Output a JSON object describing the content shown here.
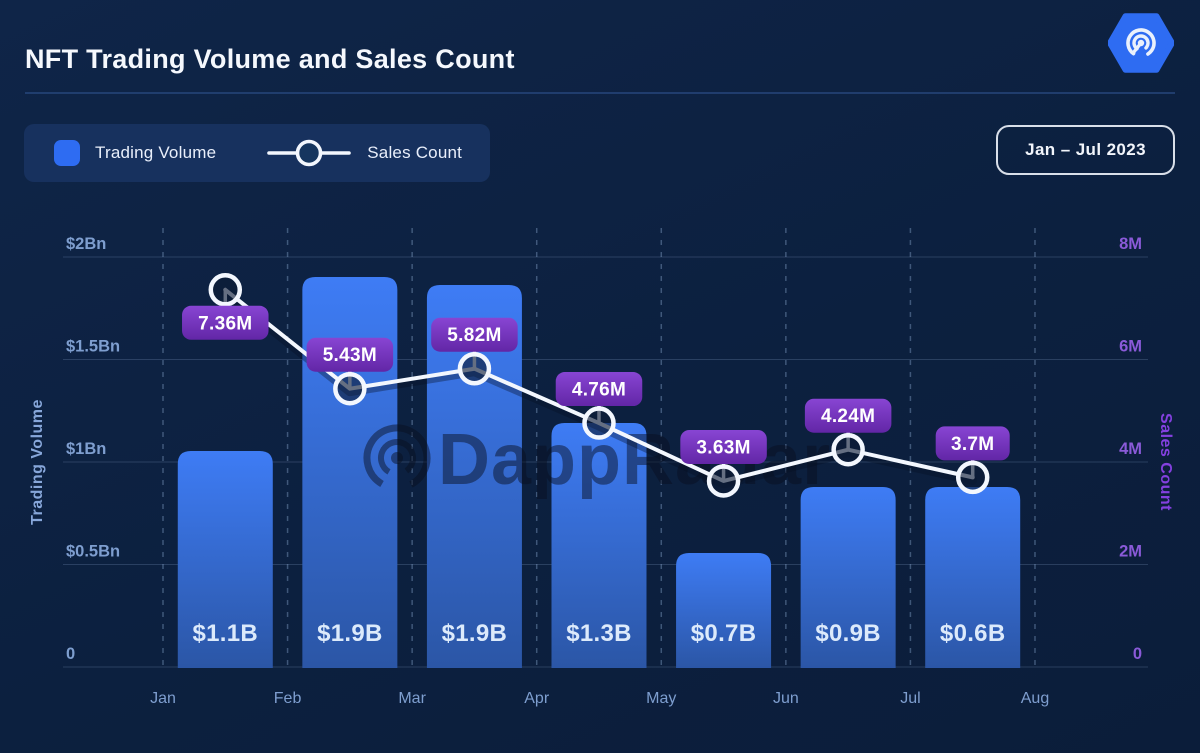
{
  "header": {
    "title": "NFT Trading Volume and Sales Count",
    "range_badge": "Jan – Jul 2023"
  },
  "legend": {
    "volume_label": "Trading Volume",
    "sales_label": "Sales Count"
  },
  "watermark": "DappRadar",
  "colors": {
    "background": "#0c203f",
    "panel": "#17315e",
    "accent_blue": "#2e6cf2",
    "bar_top": "#3e7cf5",
    "bar_bottom": "#2b56a6",
    "line": "#f3f7fe",
    "badge_purple_top": "#8845d3",
    "badge_purple_bottom": "#6226a6",
    "left_axis_text": "#7e9ecf",
    "right_axis_text": "#8a5ad8",
    "right_axis_title": "#8440e0"
  },
  "chart_data": {
    "type": "bar+line combo",
    "categories": [
      "Jan",
      "Feb",
      "Mar",
      "Apr",
      "May",
      "Jun",
      "Jul",
      "Aug"
    ],
    "bar_alignment": "between-ticks",
    "series": [
      {
        "name": "Trading Volume",
        "type": "bar",
        "unit": "USD billions",
        "values": [
          1.1,
          1.9,
          1.9,
          1.3,
          0.7,
          0.9,
          0.6
        ],
        "value_labels": [
          "$1.1B",
          "$1.9B",
          "$1.9B",
          "$1.3B",
          "$0.7B",
          "$0.9B",
          "$0.6B"
        ]
      },
      {
        "name": "Sales Count",
        "type": "line",
        "unit": "millions",
        "values": [
          7.36,
          5.43,
          5.82,
          4.76,
          3.63,
          4.24,
          3.7
        ],
        "value_labels": [
          "7.36M",
          "5.43M",
          "5.82M",
          "4.76M",
          "3.63M",
          "4.24M",
          "3.7M"
        ]
      }
    ],
    "left_axis": {
      "title": "Trading Volume",
      "tick_labels": [
        "$2Bn",
        "$1.5Bn",
        "$1Bn",
        "$0.5Bn",
        "0"
      ],
      "min": 0,
      "max": 2
    },
    "right_axis": {
      "title": "Sales Count",
      "tick_labels": [
        "8M",
        "6M",
        "4M",
        "2M",
        "0"
      ],
      "min": 0,
      "max": 8
    },
    "grid": "dashed vertical lines at each month, faint horizontal lines at ticks",
    "legend_position": "top-left"
  }
}
